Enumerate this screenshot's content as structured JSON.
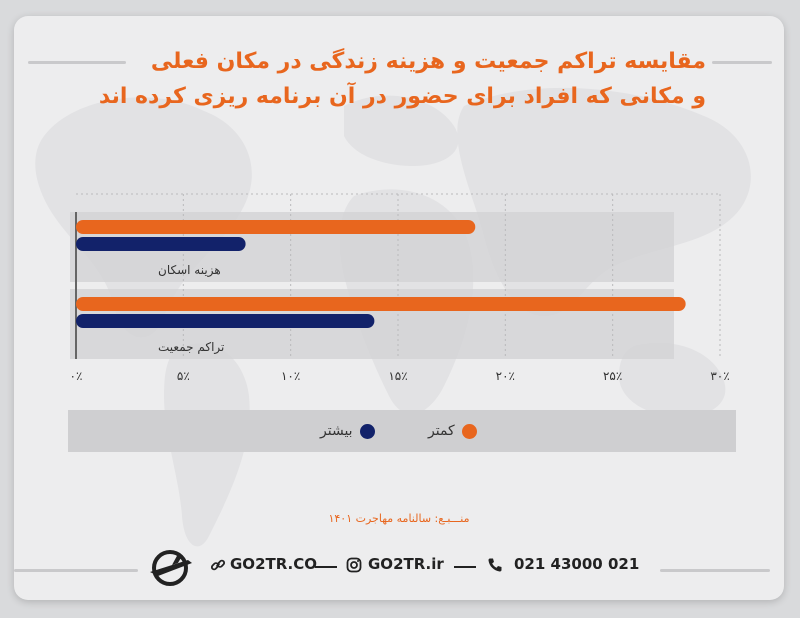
{
  "title": {
    "line1": "مقایسه تراکم جمعیت و هزینه زندگی در مکان فعلی",
    "line2": "و مکانی که افراد برای حضور در آن برنامه ریزی کرده اند"
  },
  "colors": {
    "accent": "#e8661e",
    "navy": "#12226a",
    "band": "#d4d4d6"
  },
  "chart_data": {
    "type": "bar",
    "orientation": "horizontal",
    "categories": [
      "هزینه اسکان",
      "تراکم جمعیت"
    ],
    "series": [
      {
        "name": "کمتر",
        "color": "#e8661e",
        "values": [
          18.6,
          28.4
        ]
      },
      {
        "name": "بیشتر",
        "color": "#12226a",
        "values": [
          7.9,
          13.9
        ]
      }
    ],
    "xlim": [
      0,
      30
    ],
    "x_ticks": [
      0,
      5,
      10,
      15,
      20,
      25,
      30
    ],
    "x_tick_labels": [
      "۰٪",
      "۵٪",
      "۱۰٪",
      "۱۵٪",
      "۲۰٪",
      "۲۵٪",
      "۳۰٪"
    ],
    "grid": true,
    "legend_position": "bottom"
  },
  "legend": {
    "less": "کمتر",
    "more": "بیشتر"
  },
  "source": "منـــبـع: سالنامه مهاجرت ۱۴۰۱",
  "footer": {
    "website": "GO2TR.CO",
    "instagram": "GO2TR.ir",
    "phone": "021 43000 021",
    "logo_icon": "airplane-globe-icon",
    "link_icon": "link-icon",
    "instagram_icon": "instagram-icon",
    "phone_icon": "phone-icon"
  }
}
